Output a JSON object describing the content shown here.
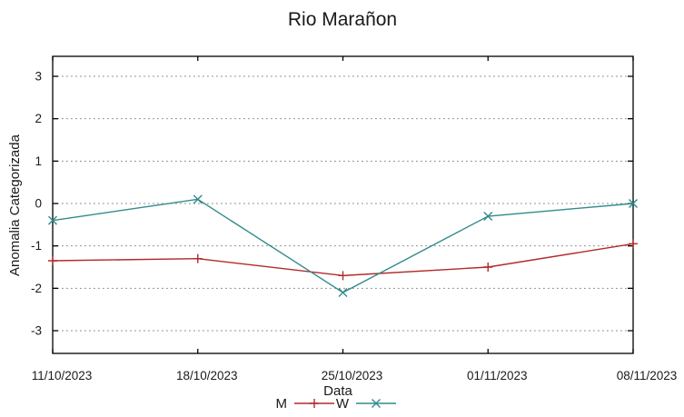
{
  "chart_data": {
    "type": "line",
    "title": "Rio Marañon",
    "xlabel": "Data",
    "ylabel": "Anomalia Categorizada",
    "categories": [
      "11/10/2023",
      "18/10/2023",
      "25/10/2023",
      "01/11/2023",
      "08/11/2023"
    ],
    "series": [
      {
        "name": "M",
        "color": "#b22a2a",
        "marker": "plus",
        "values": [
          -1.35,
          -1.3,
          -1.7,
          -1.5,
          -0.95
        ]
      },
      {
        "name": "W",
        "color": "#318b8b",
        "marker": "cross",
        "values": [
          -0.4,
          0.1,
          -2.1,
          -0.3,
          0.0
        ]
      }
    ],
    "yticks": [
      3,
      2,
      1,
      0,
      -1,
      -2,
      -3
    ],
    "ylim": [
      -3.53,
      3.47
    ],
    "grid": "horizontal-dotted",
    "legend_position": "bottom-center",
    "colors": {
      "background": "#ffffff",
      "border": "#000000",
      "gridline": "#8a8a8a",
      "text": "#1a1a1a"
    }
  }
}
